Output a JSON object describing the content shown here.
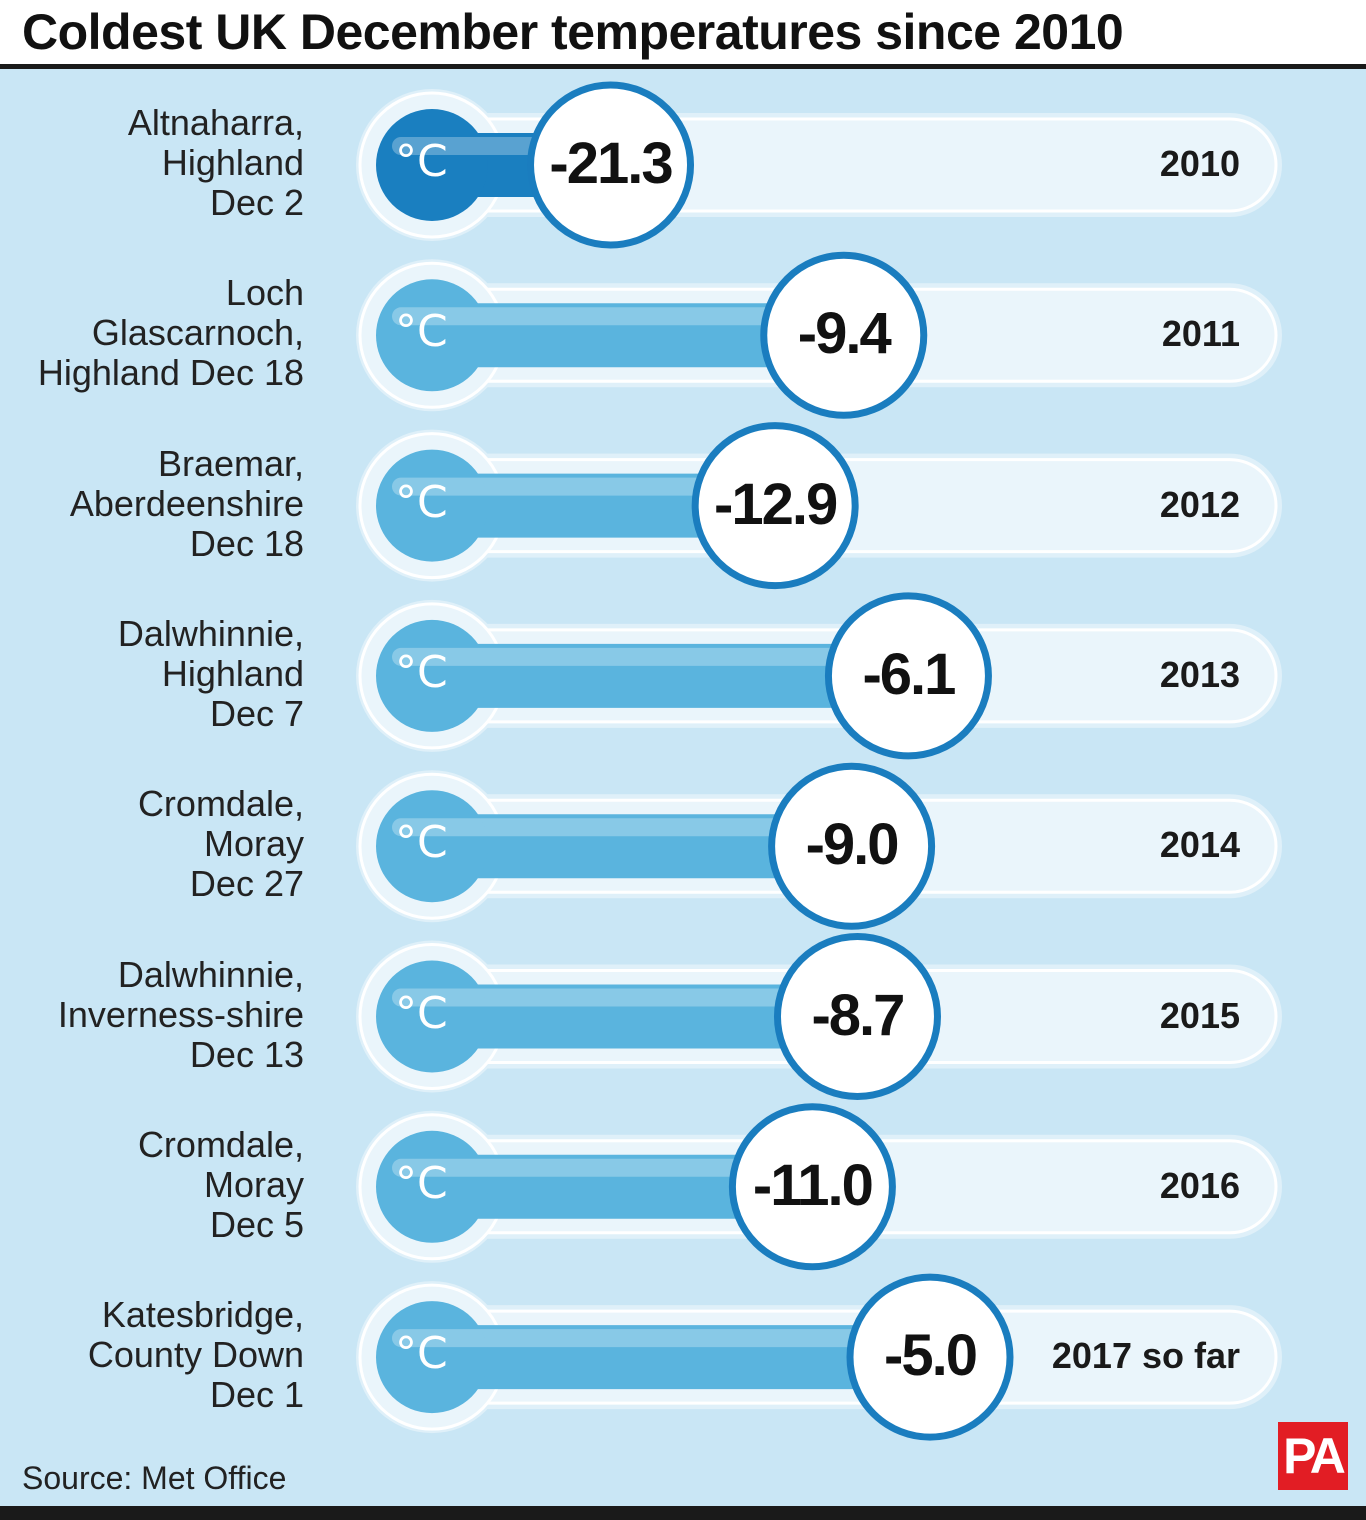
{
  "title": "Coldest UK December temperatures since 2010",
  "source": "Source: Met Office",
  "logo_text": "PA",
  "unit_symbol": "°C",
  "colors": {
    "panel": "#c9e6f5",
    "fluid": "#5ab4de",
    "fluid_coldest": "#1a7fc0",
    "ring": "#1a7dbf",
    "tube": "#eaf5fb",
    "logo": "#e21d24"
  },
  "chart_data": {
    "type": "bar",
    "title": "Coldest UK December temperatures since 2010",
    "unit": "°C",
    "categories": [
      "2010",
      "2011",
      "2012",
      "2013",
      "2014",
      "2015",
      "2016",
      "2017 so far"
    ],
    "locations": [
      "Altnaharra,\nHighland\nDec 2",
      "Loch\nGlascarnoch,\nHighland Dec 18",
      "Braemar,\nAberdeenshire\nDec 18",
      "Dalwhinnie,\nHighland\nDec 7",
      "Cromdale,\nMoray\nDec 27",
      "Dalwhinnie,\nInverness-shire\nDec 13",
      "Cromdale,\nMoray\nDec 5",
      "Katesbridge,\nCounty Down\nDec 1"
    ],
    "values": [
      -21.3,
      -9.4,
      -12.9,
      -6.1,
      -9.0,
      -8.7,
      -11.0,
      -5.0
    ],
    "value_labels": [
      "-21.3",
      "-9.4",
      "-12.9",
      "-6.1",
      "-9.0",
      "-8.7",
      "-11.0",
      "-5.0"
    ]
  }
}
